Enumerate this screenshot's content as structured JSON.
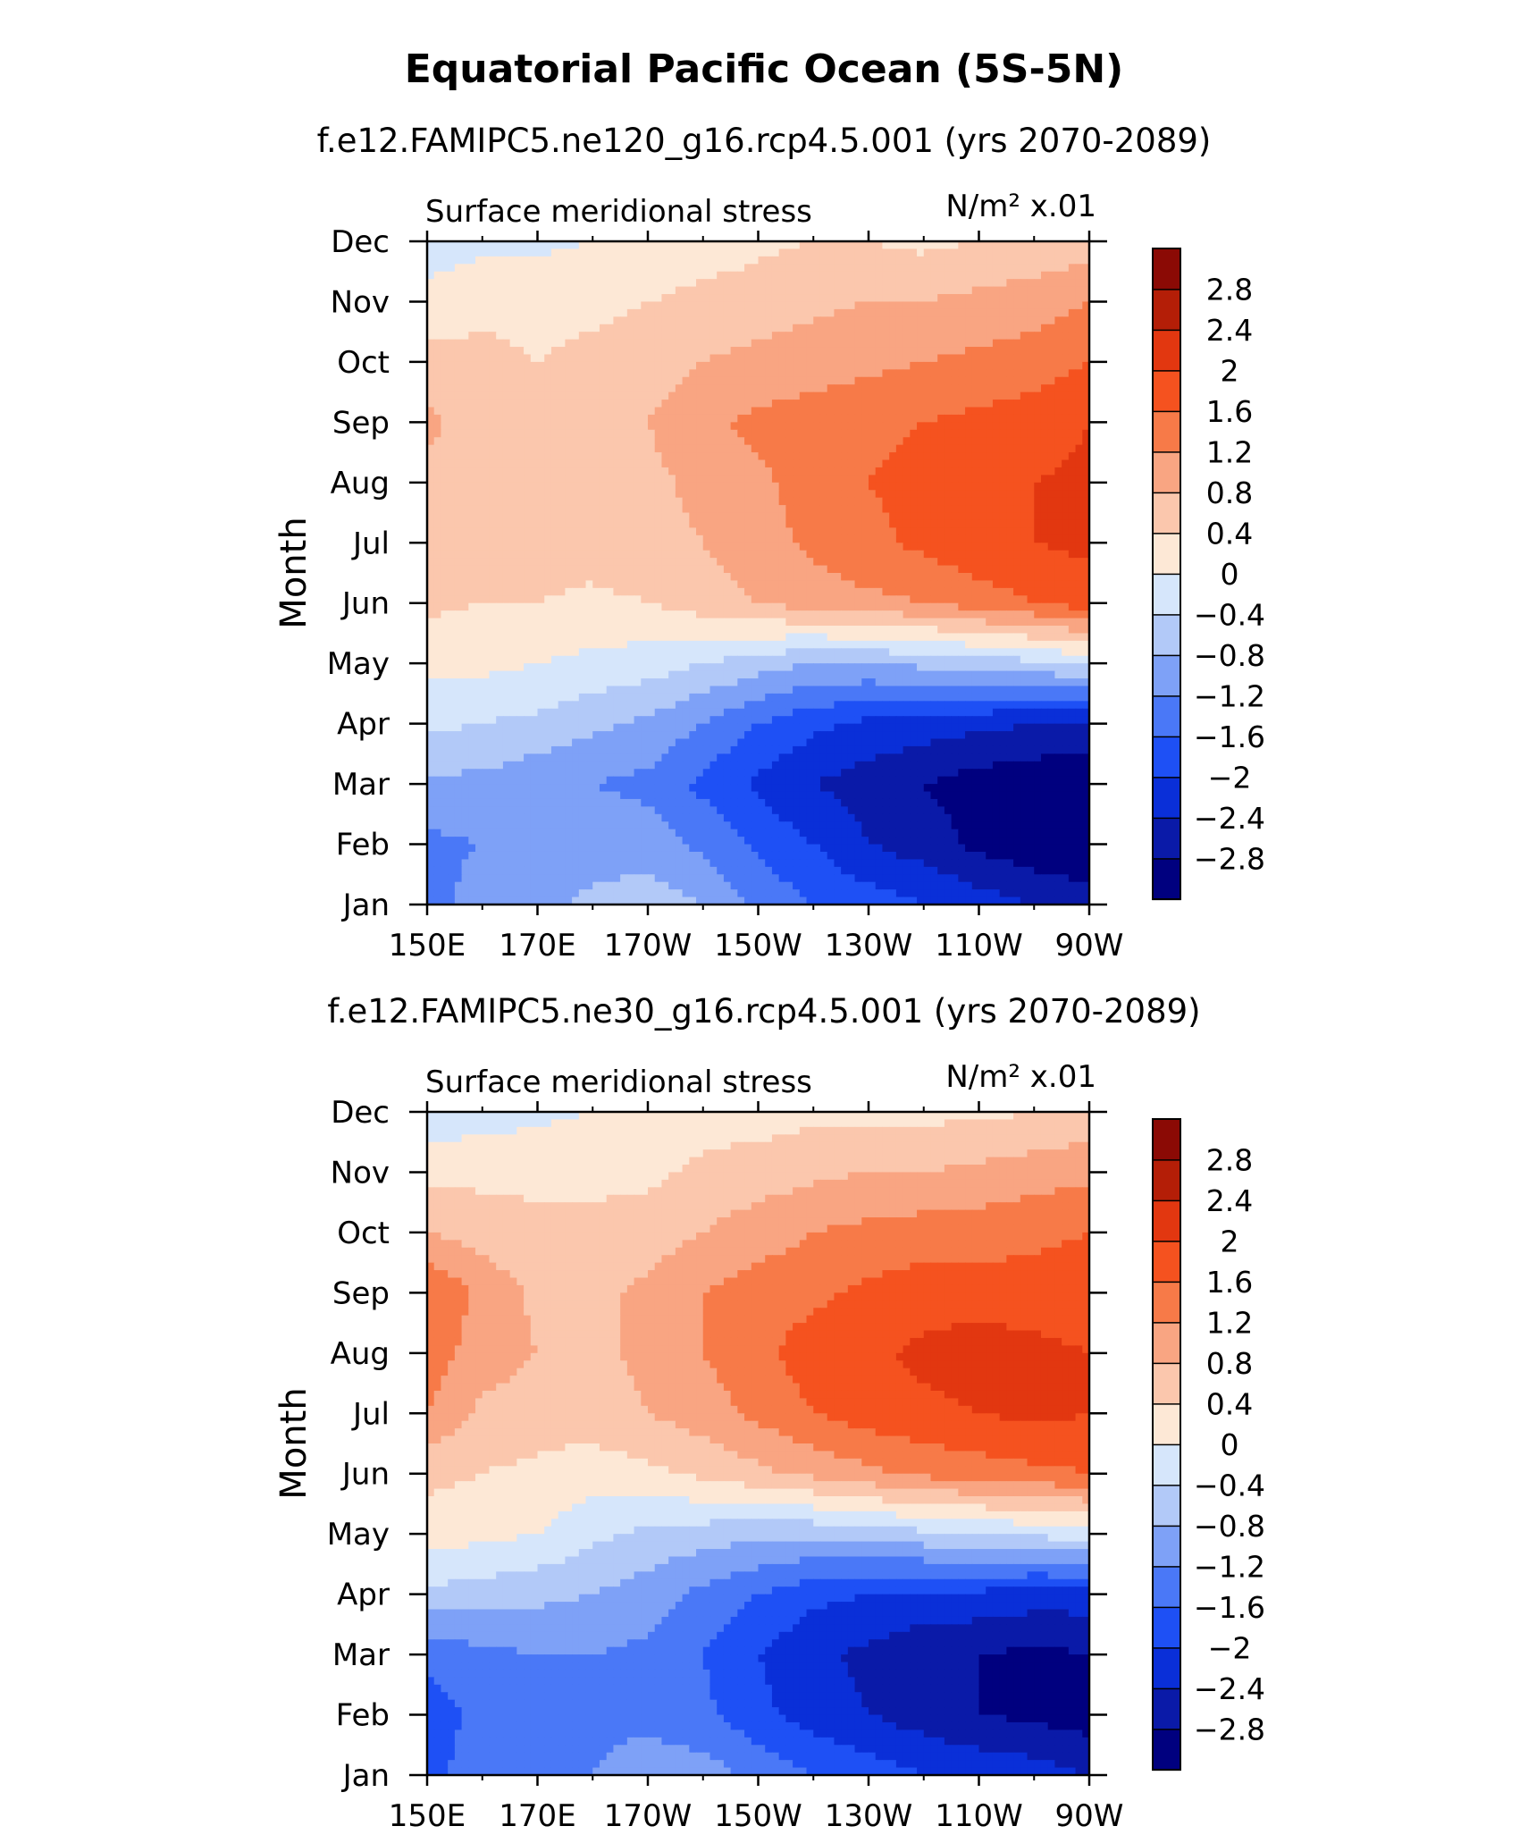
{
  "figure": {
    "title": "Equatorial Pacific Ocean (5S-5N)"
  },
  "chart_data": [
    {
      "type": "heatmap",
      "run_title": "f.e12.FAMIPC5.ne120_g16.rcp4.5.001 (yrs 2070-2089)",
      "left_label": "Surface meridional stress",
      "right_label": "N/m² x.01",
      "ylabel": "Month",
      "x_ticks": [
        "150E",
        "170E",
        "170W",
        "150W",
        "130W",
        "110W",
        "90W"
      ],
      "y_ticks": [
        "Jan",
        "Feb",
        "Mar",
        "Apr",
        "May",
        "Jun",
        "Jul",
        "Aug",
        "Sep",
        "Oct",
        "Nov",
        "Dec"
      ],
      "x": [
        150,
        160,
        170,
        180,
        190,
        200,
        210,
        220,
        230,
        240,
        250,
        260,
        270
      ],
      "y": [
        "Jan",
        "Feb",
        "Mar",
        "Apr",
        "May",
        "Jun",
        "Jul",
        "Aug",
        "Sep",
        "Oct",
        "Nov",
        "Dec"
      ],
      "z": [
        [
          -1.4,
          -1.0,
          -0.9,
          -0.7,
          -0.6,
          -0.8,
          -1.3,
          -1.6,
          -1.8,
          -2.0,
          -2.2,
          -2.4,
          -2.6
        ],
        [
          -1.3,
          -1.2,
          -1.2,
          -1.0,
          -1.0,
          -1.3,
          -1.7,
          -2.0,
          -2.4,
          -2.6,
          -2.9,
          -3.1,
          -3.2
        ],
        [
          -0.9,
          -0.9,
          -1.1,
          -1.2,
          -1.3,
          -1.7,
          -2.1,
          -2.4,
          -2.6,
          -2.8,
          -3.0,
          -3.1,
          -3.2
        ],
        [
          -0.3,
          -0.4,
          -0.5,
          -0.7,
          -0.9,
          -1.2,
          -1.6,
          -1.9,
          -2.1,
          -2.2,
          -2.3,
          -2.4,
          -2.4
        ],
        [
          0.1,
          0.1,
          0.0,
          -0.1,
          -0.2,
          -0.4,
          -0.6,
          -0.8,
          -0.8,
          -0.7,
          -0.6,
          -0.5,
          -0.3
        ],
        [
          0.5,
          0.4,
          0.4,
          0.3,
          0.4,
          0.6,
          0.8,
          1.0,
          1.1,
          1.2,
          1.4,
          1.6,
          1.8
        ],
        [
          0.7,
          0.6,
          0.6,
          0.6,
          0.7,
          0.8,
          1.0,
          1.3,
          1.5,
          1.7,
          1.9,
          2.0,
          2.1
        ],
        [
          0.7,
          0.6,
          0.6,
          0.6,
          0.7,
          0.9,
          1.1,
          1.4,
          1.6,
          1.7,
          1.8,
          2.0,
          2.1
        ],
        [
          0.9,
          0.6,
          0.6,
          0.6,
          0.8,
          1.1,
          1.3,
          1.4,
          1.5,
          1.6,
          1.7,
          1.8,
          2.0
        ],
        [
          0.5,
          0.5,
          0.4,
          0.5,
          0.6,
          0.8,
          0.9,
          1.0,
          1.1,
          1.2,
          1.3,
          1.4,
          1.6
        ],
        [
          0.2,
          0.3,
          0.3,
          0.3,
          0.4,
          0.5,
          0.6,
          0.7,
          0.8,
          0.8,
          0.9,
          1.0,
          1.2
        ],
        [
          -0.3,
          -0.1,
          -0.1,
          0.0,
          0.1,
          0.2,
          0.3,
          0.4,
          0.4,
          0.3,
          0.4,
          0.5,
          0.6
        ]
      ],
      "levels": [
        -2.8,
        -2.4,
        -2.0,
        -1.6,
        -1.2,
        -0.8,
        -0.4,
        0,
        0.4,
        0.8,
        1.2,
        1.6,
        2.0,
        2.4,
        2.8
      ],
      "colorbar_labels": [
        "2.8",
        "2.4",
        "2",
        "1.6",
        "1.2",
        "0.8",
        "0.4",
        "0",
        "−0.4",
        "−0.8",
        "−1.2",
        "−1.6",
        "−2",
        "−2.4",
        "−2.8"
      ]
    },
    {
      "type": "heatmap",
      "run_title": "f.e12.FAMIPC5.ne30_g16.rcp4.5.001 (yrs 2070-2089)",
      "left_label": "Surface meridional stress",
      "right_label": "N/m² x.01",
      "ylabel": "Month",
      "x_ticks": [
        "150E",
        "170E",
        "170W",
        "150W",
        "130W",
        "110W",
        "90W"
      ],
      "y_ticks": [
        "Jan",
        "Feb",
        "Mar",
        "Apr",
        "May",
        "Jun",
        "Jul",
        "Aug",
        "Sep",
        "Oct",
        "Nov",
        "Dec"
      ],
      "x": [
        150,
        160,
        170,
        180,
        190,
        200,
        210,
        220,
        230,
        240,
        250,
        260,
        270
      ],
      "y": [
        "Jan",
        "Feb",
        "Mar",
        "Apr",
        "May",
        "Jun",
        "Jul",
        "Aug",
        "Sep",
        "Oct",
        "Nov",
        "Dec"
      ],
      "z": [
        [
          -1.8,
          -1.3,
          -1.2,
          -1.2,
          -1.0,
          -1.0,
          -1.3,
          -1.6,
          -1.8,
          -2.0,
          -2.1,
          -2.2,
          -2.4
        ],
        [
          -1.8,
          -1.5,
          -1.4,
          -1.3,
          -1.3,
          -1.5,
          -1.9,
          -2.2,
          -2.4,
          -2.6,
          -2.8,
          -2.9,
          -3.0
        ],
        [
          -1.5,
          -1.3,
          -1.2,
          -1.2,
          -1.3,
          -1.6,
          -2.0,
          -2.3,
          -2.5,
          -2.7,
          -2.8,
          -2.9,
          -2.8
        ],
        [
          -0.5,
          -0.6,
          -0.7,
          -0.8,
          -1.0,
          -1.3,
          -1.6,
          -1.9,
          -2.0,
          -2.1,
          -2.1,
          -2.2,
          -2.2
        ],
        [
          0.2,
          0.1,
          0.0,
          -0.3,
          -0.5,
          -0.6,
          -0.7,
          -0.7,
          -0.6,
          -0.5,
          -0.4,
          -0.3,
          -0.2
        ],
        [
          0.5,
          0.4,
          0.3,
          0.2,
          0.3,
          0.5,
          0.7,
          0.9,
          1.1,
          1.3,
          1.4,
          1.5,
          1.6
        ],
        [
          1.2,
          0.7,
          0.6,
          0.6,
          0.8,
          1.0,
          1.3,
          1.6,
          1.8,
          1.9,
          2.0,
          2.1,
          2.0
        ],
        [
          1.4,
          1.0,
          0.8,
          0.7,
          0.9,
          1.2,
          1.5,
          1.8,
          1.9,
          2.1,
          2.2,
          2.1,
          2.0
        ],
        [
          1.6,
          1.1,
          0.7,
          0.7,
          0.9,
          1.2,
          1.4,
          1.5,
          1.7,
          1.8,
          1.8,
          1.8,
          1.8
        ],
        [
          0.8,
          0.6,
          0.5,
          0.5,
          0.6,
          0.8,
          1.0,
          1.2,
          1.3,
          1.4,
          1.4,
          1.5,
          1.6
        ],
        [
          0.3,
          0.3,
          0.3,
          0.3,
          0.3,
          0.5,
          0.6,
          0.7,
          0.8,
          0.8,
          0.9,
          1.0,
          1.1
        ],
        [
          -0.3,
          -0.2,
          -0.1,
          0.0,
          0.1,
          0.2,
          0.2,
          0.3,
          0.3,
          0.3,
          0.3,
          0.4,
          0.5
        ]
      ],
      "levels": [
        -2.8,
        -2.4,
        -2.0,
        -1.6,
        -1.2,
        -0.8,
        -0.4,
        0,
        0.4,
        0.8,
        1.2,
        1.6,
        2.0,
        2.4,
        2.8
      ],
      "colorbar_labels": [
        "2.8",
        "2.4",
        "2",
        "1.6",
        "1.2",
        "0.8",
        "0.4",
        "0",
        "−0.4",
        "−0.8",
        "−1.2",
        "−1.6",
        "−2",
        "−2.4",
        "−2.8"
      ]
    }
  ],
  "palette": [
    "#00007f",
    "#0a1aa8",
    "#0a2fd8",
    "#1e50f5",
    "#4a78f7",
    "#7ea1f7",
    "#b2c9f8",
    "#d6e6fb",
    "#fde8d6",
    "#fbc7ad",
    "#f9a582",
    "#f77a48",
    "#f5521f",
    "#e23710",
    "#b41e07",
    "#8b0a05"
  ]
}
